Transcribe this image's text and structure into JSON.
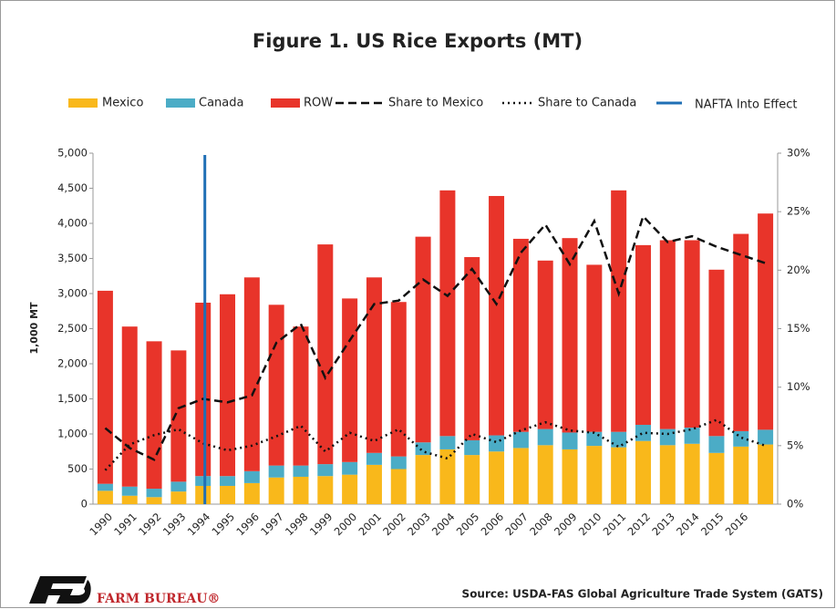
{
  "chart_data": {
    "type": "bar",
    "title": "Figure 1. US Rice Exports (MT)",
    "y_label": "1,000 MT",
    "categories": [
      "1990",
      "1991",
      "1992",
      "1993",
      "1994",
      "1995",
      "1996",
      "1997",
      "1998",
      "1999",
      "2000",
      "2001",
      "2002",
      "2003",
      "2004",
      "2005",
      "2006",
      "2007",
      "2008",
      "2009",
      "2010",
      "2011",
      "2012",
      "2013",
      "2014",
      "2015",
      "2016",
      null
    ],
    "series": [
      {
        "name": "Mexico",
        "color": "#f9b81b",
        "values": [
          190,
          120,
          100,
          180,
          260,
          260,
          300,
          380,
          390,
          400,
          420,
          560,
          500,
          700,
          780,
          700,
          750,
          800,
          840,
          780,
          830,
          810,
          900,
          840,
          860,
          730,
          820,
          850
        ]
      },
      {
        "name": "Canada",
        "color": "#4bacc6",
        "values": [
          100,
          130,
          120,
          140,
          140,
          140,
          170,
          170,
          160,
          170,
          180,
          170,
          180,
          180,
          190,
          210,
          230,
          230,
          230,
          240,
          200,
          220,
          230,
          230,
          230,
          240,
          220,
          210
        ]
      },
      {
        "name": "ROW",
        "color": "#e8342a",
        "values": [
          2750,
          2280,
          2100,
          1870,
          2470,
          2590,
          2760,
          2290,
          1980,
          3130,
          2330,
          2500,
          2200,
          2930,
          3500,
          2610,
          3410,
          2750,
          2400,
          2770,
          2380,
          3440,
          2560,
          2690,
          2670,
          2370,
          2810,
          3080
        ]
      },
      {
        "name": "Share to Mexico",
        "color": "#111111",
        "axis": "y2",
        "style": "dashed",
        "values": [
          6.5,
          4.8,
          3.8,
          8.2,
          9.0,
          8.7,
          9.3,
          13.8,
          15.4,
          10.8,
          14.0,
          17.1,
          17.4,
          19.2,
          17.8,
          20.1,
          17.1,
          21.5,
          23.9,
          20.5,
          24.2,
          18.0,
          24.6,
          22.4,
          22.9,
          22.0,
          21.3,
          20.6
        ]
      },
      {
        "name": "Share to Canada",
        "color": "#111111",
        "axis": "y2",
        "style": "dotted",
        "values": [
          2.9,
          5.1,
          5.9,
          6.4,
          5.2,
          4.6,
          5.0,
          5.8,
          6.7,
          4.5,
          6.1,
          5.4,
          6.4,
          4.5,
          3.9,
          6.0,
          5.3,
          6.3,
          7.0,
          6.3,
          6.1,
          4.9,
          6.1,
          6.0,
          6.4,
          7.2,
          5.7,
          5.0
        ]
      }
    ],
    "vline": {
      "name": "NAFTA Into Effect",
      "color": "#1f6fb5",
      "x": "1994"
    },
    "ylim": [
      0,
      5000
    ],
    "yticks": [
      0,
      500,
      {
        "value": 1000,
        "label": "1,000"
      },
      {
        "value": 1500,
        "label": "1,500"
      },
      {
        "value": 2000,
        "label": "2,000"
      },
      {
        "value": 2500,
        "label": "2,500"
      },
      {
        "value": 3000,
        "label": "3,000"
      },
      {
        "value": 3500,
        "label": "3,500"
      },
      {
        "value": 4000,
        "label": "4,000"
      },
      {
        "value": 4500,
        "label": "4,500"
      },
      {
        "value": 5000,
        "label": "5,000"
      }
    ],
    "y2lim": [
      0,
      30
    ],
    "y2ticks": [
      {
        "value": 0,
        "label": "0%"
      },
      {
        "value": 5,
        "label": "5%"
      },
      {
        "value": 10,
        "label": "10%"
      },
      {
        "value": 15,
        "label": "15%"
      },
      {
        "value": 20,
        "label": "20%"
      },
      {
        "value": 25,
        "label": "25%"
      },
      {
        "value": 30,
        "label": "30%"
      }
    ],
    "source": "Source: USDA-FAS Global Agriculture Trade System (GATS)",
    "logo": "FARM BUREAU®"
  }
}
